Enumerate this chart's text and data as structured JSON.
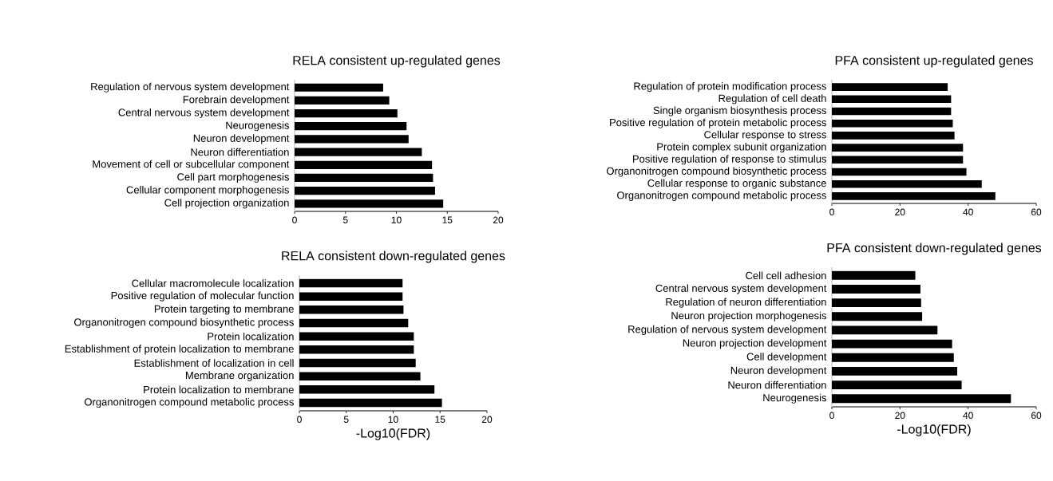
{
  "chart_data": [
    {
      "type": "bar",
      "orientation": "horizontal",
      "title": "RELA consistent up-regulated genes",
      "categories": [
        "Regulation of nervous system development",
        "Forebrain development",
        "Central nervous system development",
        "Neurogenesis",
        "Neuron development",
        "Neuron differentiation",
        "Movement of cell or subcellular component",
        "Cell part morphogenesis",
        "Cellular component morphogenesis",
        "Cell projection organization"
      ],
      "values": [
        8.7,
        9.3,
        10.1,
        11.0,
        11.2,
        12.5,
        13.5,
        13.6,
        13.8,
        14.6
      ],
      "color": "#000000",
      "xlim": [
        0,
        20
      ],
      "xticks": [
        0,
        5,
        10,
        15,
        20
      ]
    },
    {
      "type": "bar",
      "orientation": "horizontal",
      "title": "PFA consistent up-regulated genes",
      "categories": [
        "Regulation of protein modification process",
        "Regulation of cell death",
        "Single organism biosynthesis process",
        "Positive regulation of protein metabolic process",
        "Cellular response to stress",
        "Protein complex subunit organization",
        "Positive regulation of response to stimulus",
        "Organonitrogen compound biosynthetic process",
        "Cellular response to organic substance",
        "Organonitrogen compound metabolic process"
      ],
      "values": [
        34,
        35,
        35,
        35.5,
        36,
        38.5,
        38.5,
        39.5,
        44,
        48
      ],
      "color": "#000000",
      "xlim": [
        0,
        60
      ],
      "xticks": [
        0,
        20,
        40,
        60
      ]
    },
    {
      "type": "bar",
      "orientation": "horizontal",
      "title": "RELA consistent down-regulated genes",
      "xlabel": "-Log10(FDR)",
      "categories": [
        "Cellular macromolecule localization",
        "Positive regulation of molecular function",
        "Protein targeting to membrane",
        "Organonitrogen compound biosynthetic process",
        "Protein localization",
        "Establishment of protein localization to membrane",
        "Establishment of localization in cell",
        "Membrane organization",
        "Protein localization to membrane",
        "Organonitrogen compound metabolic process"
      ],
      "values": [
        11.0,
        11.0,
        11.1,
        11.6,
        12.2,
        12.2,
        12.4,
        12.9,
        14.4,
        15.2
      ],
      "color": "#000000",
      "xlim": [
        0,
        20
      ],
      "xticks": [
        0,
        5,
        10,
        15,
        20
      ]
    },
    {
      "type": "bar",
      "orientation": "horizontal",
      "title": "PFA consistent down-regulated genes",
      "xlabel": "-Log10(FDR)",
      "categories": [
        "Cell cell adhesion",
        "Central nervous system development",
        "Regulation of neuron differentiation",
        "Neuron projection morphogenesis",
        "Regulation of nervous system development",
        "Neuron projection development",
        "Cell development",
        "Neuron development",
        "Neuron differentiation",
        "Neurogenesis"
      ],
      "values": [
        24.5,
        26.0,
        26.2,
        26.5,
        31.0,
        35.3,
        35.8,
        36.8,
        38.1,
        52.6
      ],
      "color": "#000000",
      "xlim": [
        0,
        60
      ],
      "xticks": [
        0,
        20,
        40,
        60
      ]
    }
  ]
}
